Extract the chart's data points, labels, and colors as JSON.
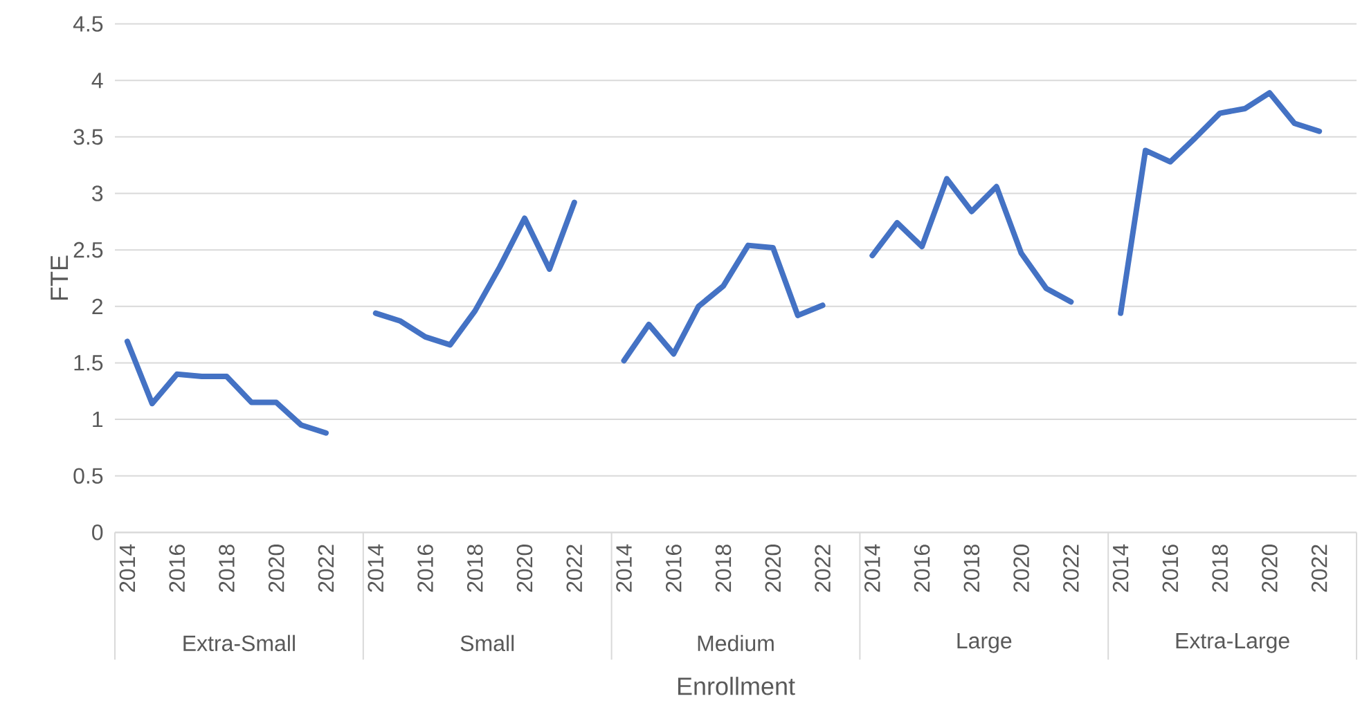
{
  "chart_data": {
    "type": "line",
    "xlabel": "Enrollment",
    "ylabel": "FTE",
    "categories": [
      "2014",
      null,
      "2016",
      null,
      "2018",
      null,
      "2020",
      null,
      "2022",
      null,
      "2014",
      null,
      "2016",
      null,
      "2018",
      null,
      "2020",
      null,
      "2022",
      null,
      "2014",
      null,
      "2016",
      null,
      "2018",
      null,
      "2020",
      null,
      "2022",
      null,
      "2014",
      null,
      "2016",
      null,
      "2018",
      null,
      "2020",
      null,
      "2022",
      null,
      "2014",
      null,
      "2016",
      null,
      "2018",
      null,
      "2020",
      null,
      "2022",
      null
    ],
    "annotations": [
      "Extra-Small",
      "Small",
      "Medium",
      "Large",
      "Extra-Large"
    ],
    "series": [
      {
        "color": "#4472c4",
        "values": [
          1.69,
          1.14,
          1.4,
          1.38,
          1.38,
          1.15,
          1.15,
          0.95,
          0.88,
          null,
          1.94,
          1.87,
          1.73,
          1.66,
          1.96,
          2.35,
          2.78,
          2.33,
          2.92,
          null,
          1.52,
          1.84,
          1.58,
          2.0,
          2.18,
          2.54,
          2.52,
          1.92,
          2.01,
          null,
          2.45,
          2.74,
          2.53,
          3.13,
          2.84,
          3.06,
          2.47,
          2.16,
          2.04,
          null,
          1.94,
          3.38,
          3.28,
          3.49,
          3.71,
          3.75,
          3.89,
          3.62,
          3.55,
          null
        ]
      }
    ],
    "ylim": [
      0,
      4.5
    ],
    "yticks": [
      0,
      0.5,
      1,
      1.5,
      2,
      2.5,
      3,
      3.5,
      4,
      4.5
    ],
    "grid": "y",
    "marker": "none",
    "line_style": "solid"
  }
}
